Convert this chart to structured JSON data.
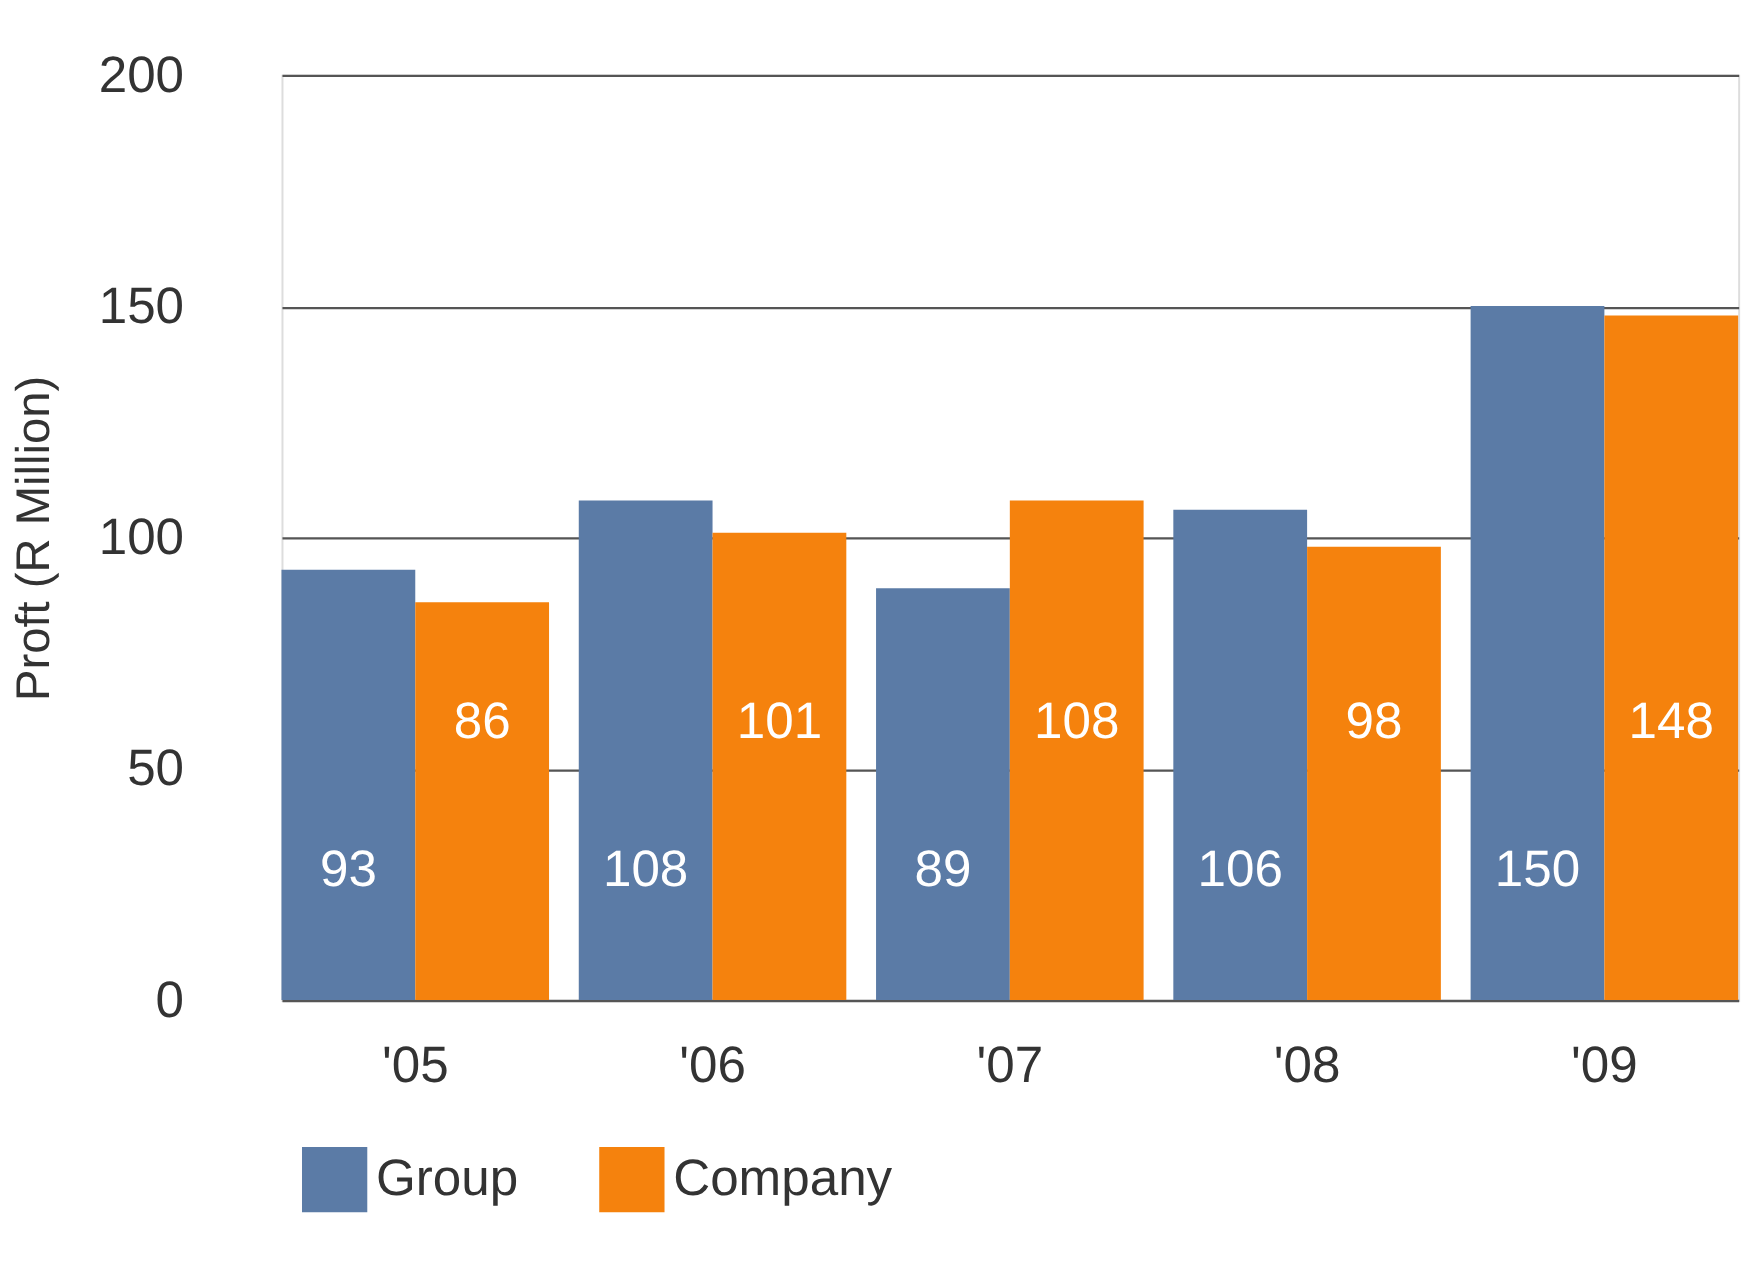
{
  "chart_data": {
    "type": "bar",
    "ylabel": "Proft (R Million)",
    "categories": [
      "'05",
      "'06",
      "'07",
      "'08",
      "'09"
    ],
    "series": [
      {
        "name": "Group",
        "color": "#5b7ba6",
        "values": [
          93,
          108,
          89,
          106,
          150
        ]
      },
      {
        "name": "Company",
        "color": "#f5820d",
        "values": [
          86,
          101,
          108,
          98,
          148
        ]
      }
    ],
    "ylim": [
      0,
      200
    ],
    "yticks": [
      0,
      50,
      100,
      150,
      200
    ],
    "grid": "y",
    "legend": "bottom",
    "data_labels": true
  }
}
